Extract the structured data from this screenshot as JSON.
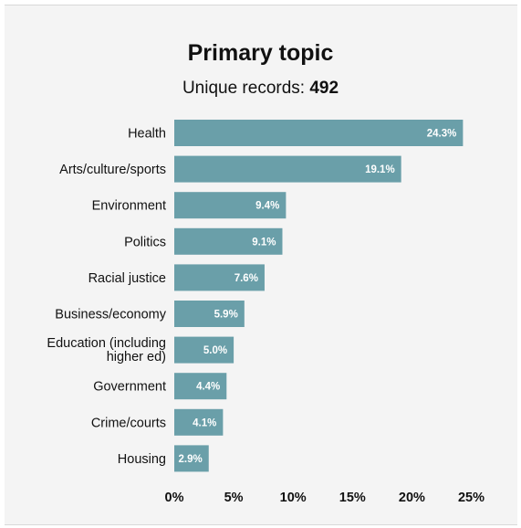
{
  "chart_data": {
    "type": "bar",
    "orientation": "horizontal",
    "title": "Primary topic",
    "subtitle_label": "Unique records:",
    "subtitle_value": "492",
    "categories": [
      "Health",
      "Arts/culture/sports",
      "Environment",
      "Politics",
      "Racial justice",
      "Business/economy",
      "Education (including higher ed)",
      "Government",
      "Crime/courts",
      "Housing"
    ],
    "values": [
      24.3,
      19.1,
      9.4,
      9.1,
      7.6,
      5.9,
      5.0,
      4.4,
      4.1,
      2.9
    ],
    "value_labels": [
      "24.3%",
      "19.1%",
      "9.4%",
      "9.1%",
      "7.6%",
      "5.9%",
      "5.0%",
      "4.4%",
      "4.1%",
      "2.9%"
    ],
    "x_ticks": [
      0,
      5,
      10,
      15,
      20,
      25
    ],
    "x_tick_labels": [
      "0%",
      "5%",
      "10%",
      "15%",
      "20%",
      "25%"
    ],
    "xlim": [
      0,
      25
    ],
    "grid": false,
    "legend": "none",
    "bar_color": "#6a9fa9",
    "background_color": "#f4f4f4"
  }
}
